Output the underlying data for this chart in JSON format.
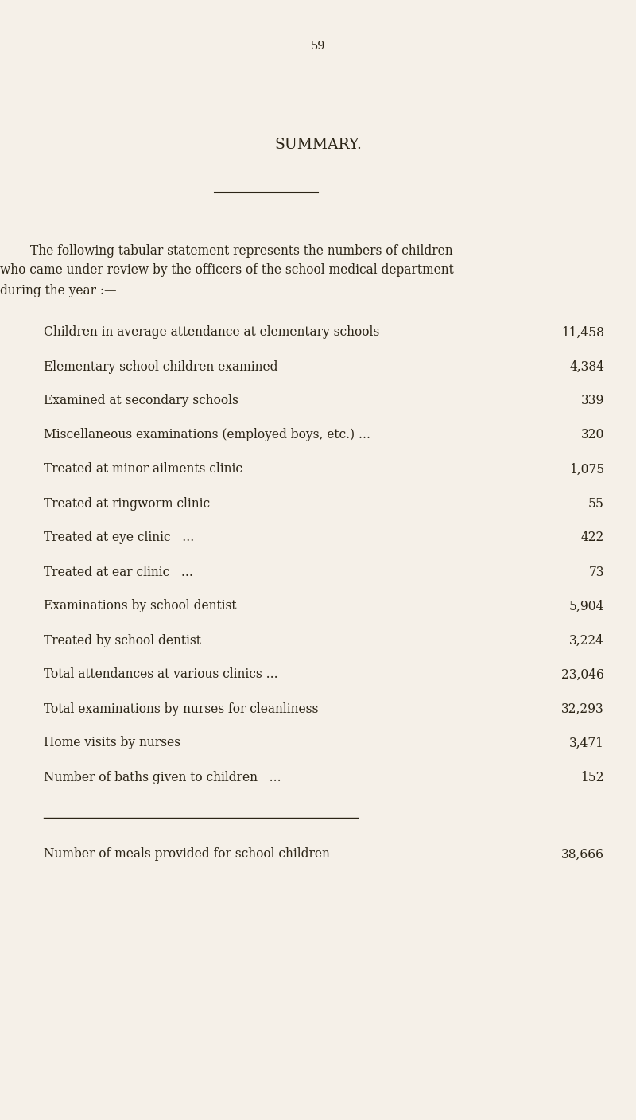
{
  "page_number": "59",
  "title": "SUMMARY.",
  "intro_line1": "The following tabular statement represents the numbers of children",
  "intro_line2": "who came under review by the officers of the school medical department",
  "intro_line3": "during the year :—",
  "rows": [
    {
      "label": "Children in average attendance at elementary schools",
      "trailing": " ...          ... ",
      "value": "11,458"
    },
    {
      "label": "Elementary school children examined",
      "trailing": " ·          ...          ...          ... ",
      "value": "4,384"
    },
    {
      "label": "Examined at secondary schools",
      "trailing": "          ...          ...          ...          ...          ...",
      "value": "339"
    },
    {
      "label": "Miscellaneous examinations (employed boys, etc.) ...",
      "trailing": "          ...          ... ",
      "value": "320"
    },
    {
      "label": "Treated at minor ailments clinic",
      "trailing": "          ...          ...          ...          ...          ...",
      "value": "1,075"
    },
    {
      "label": "Treated at ringworm clinic",
      "trailing": "     ...          ...          ...          ...          ...          ...",
      "value": "55"
    },
    {
      "label": "Treated at eye clinic   ...",
      "trailing": "          ...          ...          ...          ...          ...",
      "value": "422"
    },
    {
      "label": "Treated at ear clinic   ...",
      "trailing": "          ...          ...          ...          ...          ...",
      "value": "73"
    },
    {
      "label": "Examinations by school dentist",
      "trailing": "          ...          ...          ...          ...          ...",
      "value": "5,904"
    },
    {
      "label": "Treated by school dentist",
      "trailing": "          ...          ...          ...          ...          ...",
      "value": "3,224"
    },
    {
      "label": "Total attendances at various clinics ...",
      "trailing": "          ...          ...          ..          ...",
      "value": "23,046"
    },
    {
      "label": "Total examinations by nurses for cleanliness",
      "trailing": "          ...          ...          ...",
      "value": "32,293"
    },
    {
      "label": "Home visits by nurses",
      "trailing": "          ...          ...          ...          ...          ...          ...",
      "value": "3,471"
    },
    {
      "label": "Number of baths given to children   ...",
      "trailing": "          ...          ...          ...",
      "value": "152"
    }
  ],
  "final_row": {
    "label": "Number of meals provided for school children",
    "trailing": "          ...          ...          ...",
    "value": "38,666"
  },
  "bg_color": "#f5f0e8",
  "text_color": "#2b2416",
  "font_size": 11.2,
  "title_font_size": 13.5,
  "page_num_font_size": 10.5
}
